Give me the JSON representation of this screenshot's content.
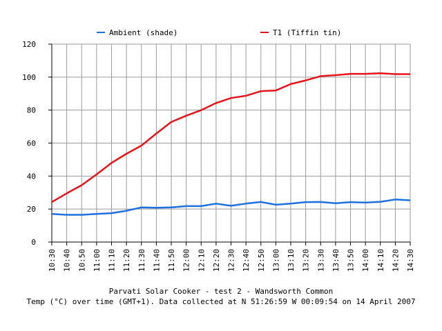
{
  "chart_data": {
    "type": "line",
    "title": "Parvati Solar Cooker - test 2 - Wandsworth Common",
    "subtitle": "Temp (°C) over time (GMT+1). Data collected at N 51:26:59 W 00:09:54 on 14 April 2007",
    "xlabel": "",
    "ylabel": "",
    "ylim": [
      0,
      120
    ],
    "yticks": [
      0,
      20,
      40,
      60,
      80,
      100,
      120
    ],
    "grid": true,
    "legend_position": "top",
    "categories": [
      "10:30",
      "10:40",
      "10:50",
      "11:00",
      "11:10",
      "11:20",
      "11:30",
      "11:40",
      "11:50",
      "12:00",
      "12:10",
      "12:20",
      "12:30",
      "12:40",
      "12:50",
      "13:00",
      "13:10",
      "13:20",
      "13:30",
      "13:40",
      "13:50",
      "14:00",
      "14:10",
      "14:20",
      "14:30"
    ],
    "series": [
      {
        "name": "Ambient (shade)",
        "color": "#1f6fe0",
        "values": [
          17,
          16.5,
          16.5,
          17,
          17.5,
          19,
          21,
          20.8,
          21,
          21.8,
          21.8,
          23.3,
          22,
          23.3,
          24.3,
          22.6,
          23.3,
          24.2,
          24.3,
          23.5,
          24.2,
          23.9,
          24.4,
          25.8,
          25.3
        ]
      },
      {
        "name": "T1 (Tiffin tin)",
        "color": "#e8121b",
        "values": [
          24.3,
          29.5,
          34.5,
          41,
          48,
          53.5,
          58.5,
          65.8,
          72.8,
          76.6,
          80,
          84.3,
          87.3,
          88.7,
          91.5,
          91.9,
          95.8,
          98,
          100.6,
          101.2,
          102,
          102,
          102.3,
          101.8,
          101.8
        ]
      }
    ]
  }
}
